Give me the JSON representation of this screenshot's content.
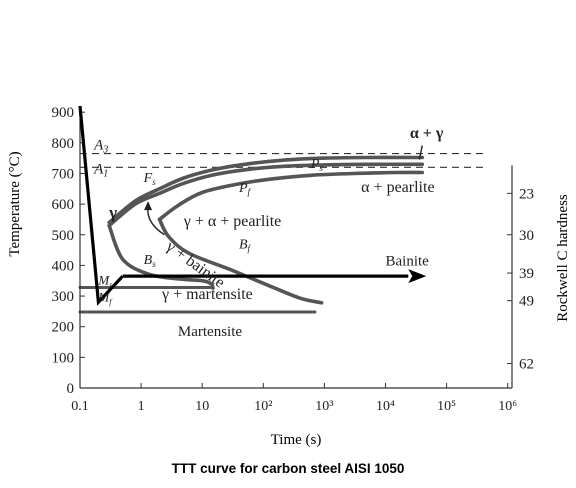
{
  "chart_data": {
    "type": "line",
    "title": "",
    "caption": "TTT curve for carbon steel AISI 1050",
    "xlabel": "Time (s)",
    "ylabel": "Temperature (°C)",
    "y2label": "Rockwell C hardness",
    "xscale": "log",
    "xlim": [
      0.1,
      1000000
    ],
    "ylim": [
      0,
      900
    ],
    "grid": false,
    "x_ticks": [
      {
        "v": 0.1,
        "label": "0.1"
      },
      {
        "v": 1,
        "label": "1"
      },
      {
        "v": 10,
        "label": "10"
      },
      {
        "v": 100,
        "label": "10²"
      },
      {
        "v": 1000,
        "label": "10³"
      },
      {
        "v": 10000,
        "label": "10⁴"
      },
      {
        "v": 100000,
        "label": "10⁵"
      },
      {
        "v": 1000000,
        "label": "10⁶"
      }
    ],
    "y_ticks": [
      0,
      100,
      200,
      300,
      400,
      500,
      600,
      700,
      800,
      900
    ],
    "hardness_ticks": [
      {
        "t": 635,
        "label": "23"
      },
      {
        "t": 500,
        "label": "30"
      },
      {
        "t": 375,
        "label": "39"
      },
      {
        "t": 285,
        "label": "49"
      },
      {
        "t": 80,
        "label": "62"
      }
    ],
    "reference_lines": [
      {
        "name": "A3",
        "y": 765
      },
      {
        "name": "A1",
        "y": 720
      }
    ],
    "series": [
      {
        "name": "",
        "role": "start-outer",
        "x": [
          0.3,
          0.8,
          2,
          5,
          15,
          50,
          200,
          1000,
          5000,
          40000
        ],
        "y": [
          540,
          610,
          650,
          685,
          712,
          730,
          743,
          750,
          752,
          752
        ]
      },
      {
        "name": "",
        "role": "start-inner",
        "x": [
          0.3,
          0.8,
          2,
          5,
          15,
          50,
          200,
          1000,
          5000,
          40000
        ],
        "y": [
          530,
          600,
          635,
          668,
          695,
          712,
          723,
          728,
          730,
          730
        ]
      },
      {
        "name": "",
        "role": "finish-pearlite",
        "x": [
          2,
          4,
          10,
          40,
          150,
          600,
          3000,
          15000,
          40000
        ],
        "y": [
          550,
          595,
          638,
          666,
          683,
          694,
          700,
          703,
          703
        ]
      },
      {
        "name": "",
        "role": "start-lower",
        "x": [
          0.3,
          0.5,
          1.3,
          4,
          10,
          14,
          15
        ],
        "y": [
          530,
          420,
          372,
          356,
          350,
          340,
          326
        ]
      },
      {
        "name": "",
        "role": "finish-bainite",
        "x": [
          2,
          2.8,
          6,
          30,
          120,
          400,
          900
        ],
        "y": [
          550,
          495,
          440,
          385,
          335,
          293,
          278
        ]
      },
      {
        "name": "",
        "role": "Ms",
        "x": [
          0.1,
          1,
          5,
          15
        ],
        "y": [
          328,
          328,
          328,
          328
        ]
      },
      {
        "name": "",
        "role": "Mf",
        "x": [
          0.1,
          1,
          100,
          700
        ],
        "y": [
          248,
          248,
          248,
          248
        ]
      }
    ],
    "cooling_path": {
      "x": [
        0.1,
        0.2,
        0.5
      ],
      "y": [
        920,
        280,
        365
      ]
    },
    "arrow": {
      "x": [
        0.5,
        40000
      ],
      "y": [
        365,
        365
      ]
    },
    "annotations": [
      {
        "text": "A",
        "sub": "3"
      },
      {
        "text": "A",
        "sub": "1"
      },
      {
        "text": "α + γ"
      },
      {
        "text": "P",
        "sub": "s"
      },
      {
        "text": "P",
        "sub": "f"
      },
      {
        "text": "F",
        "sub": "s"
      },
      {
        "text": "α + pearlite"
      },
      {
        "text": "γ + α + pearlite"
      },
      {
        "text": "γ"
      },
      {
        "text": "B",
        "sub": "s"
      },
      {
        "text": "B",
        "sub": "f"
      },
      {
        "text": "γ + bainite"
      },
      {
        "text": "Bainite"
      },
      {
        "text": "M",
        "sub": "s"
      },
      {
        "text": "M",
        "sub": "f"
      },
      {
        "text": "γ + martensite"
      },
      {
        "text": "Martensite"
      }
    ]
  }
}
